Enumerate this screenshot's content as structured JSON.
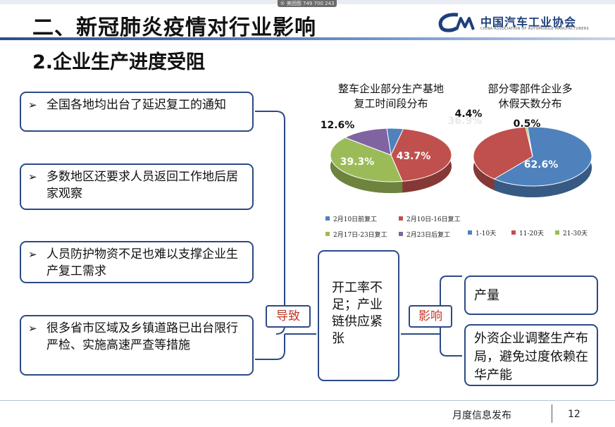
{
  "header": {
    "title": "二、新冠肺炎疫情对行业影响",
    "meta_chip": "® 美团图 749 700 243"
  },
  "logo": {
    "cn": "中国汽车工业协会",
    "en": "CHINA ASSOCIATION OF AUTOMOBILE MANUFACTURERS",
    "brand_color": "#1d3f7a"
  },
  "subtitle": "2.企业生产进度受阻",
  "causes": [
    {
      "text": "全国各地均出台了延迟复工的通知"
    },
    {
      "text": "多数地区还要求人员返回工作地后居家观察"
    },
    {
      "text": "人员防护物资不足也难以支撑企业生产复工需求"
    },
    {
      "text": "很多省市区域及乡镇道路已出台限行严检、实施高速严查等措施"
    }
  ],
  "arrow_glyph": "➢",
  "lead_to": "导致",
  "middle": "开工率不足；产业链供应紧张",
  "impact": "影响",
  "outcomes": [
    {
      "text": "产量"
    },
    {
      "text": "外资企业调整生产布局，避免过度依赖在华产能"
    }
  ],
  "chart_data": [
    {
      "type": "pie",
      "title": "整车企业部分生产基地复工时间段分布",
      "categories": [
        "2月10日前复工",
        "2月10日-16日复工",
        "2月17日-23日复工",
        "2月23日后复工"
      ],
      "values": [
        4.4,
        43.7,
        39.3,
        12.6
      ],
      "labels": [
        "4.4%",
        "43.7%",
        "39.3%",
        "12.6%"
      ],
      "colors": [
        "#4f81bd",
        "#c0504d",
        "#9bbb59",
        "#8064a2"
      ],
      "legend": "bottom"
    },
    {
      "type": "pie",
      "title": "部分零部件企业多休假天数分布",
      "categories": [
        "1-10天",
        "11-20天",
        "21-30天"
      ],
      "values": [
        62.6,
        36.9,
        0.5
      ],
      "labels": [
        "62.6%",
        "36.9%",
        "0.5%"
      ],
      "colors": [
        "#4f81bd",
        "#c0504d",
        "#9bbb59"
      ],
      "legend": "bottom"
    }
  ],
  "footer": {
    "text": "月度信息发布",
    "page": "12"
  },
  "colors": {
    "border": "#2b4a86",
    "accent_red": "#c0392b"
  }
}
